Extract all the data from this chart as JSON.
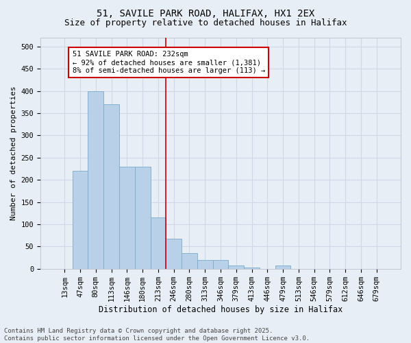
{
  "title1": "51, SAVILE PARK ROAD, HALIFAX, HX1 2EX",
  "title2": "Size of property relative to detached houses in Halifax",
  "xlabel": "Distribution of detached houses by size in Halifax",
  "ylabel": "Number of detached properties",
  "categories": [
    "13sqm",
    "47sqm",
    "80sqm",
    "113sqm",
    "146sqm",
    "180sqm",
    "213sqm",
    "246sqm",
    "280sqm",
    "313sqm",
    "346sqm",
    "379sqm",
    "413sqm",
    "446sqm",
    "479sqm",
    "513sqm",
    "546sqm",
    "579sqm",
    "612sqm",
    "646sqm",
    "679sqm"
  ],
  "values": [
    0,
    220,
    400,
    370,
    230,
    230,
    115,
    68,
    35,
    20,
    20,
    7,
    3,
    0,
    8,
    0,
    0,
    0,
    0,
    0,
    0
  ],
  "bar_color": "#b8d0e8",
  "bar_edge_color": "#7aaac8",
  "vline_color": "#cc0000",
  "annotation_text": "51 SAVILE PARK ROAD: 232sqm\n← 92% of detached houses are smaller (1,381)\n8% of semi-detached houses are larger (113) →",
  "annotation_box_color": "#ffffff",
  "annotation_box_edge_color": "#cc0000",
  "ylim": [
    0,
    520
  ],
  "yticks": [
    0,
    50,
    100,
    150,
    200,
    250,
    300,
    350,
    400,
    450,
    500
  ],
  "background_color": "#e8eef5",
  "plot_background": "#e8eef5",
  "grid_color": "#d0d8e8",
  "footer_line1": "Contains HM Land Registry data © Crown copyright and database right 2025.",
  "footer_line2": "Contains public sector information licensed under the Open Government Licence v3.0.",
  "title1_fontsize": 10,
  "title2_fontsize": 9,
  "xlabel_fontsize": 8.5,
  "ylabel_fontsize": 8,
  "tick_fontsize": 7.5,
  "annotation_fontsize": 7.5,
  "footer_fontsize": 6.5
}
